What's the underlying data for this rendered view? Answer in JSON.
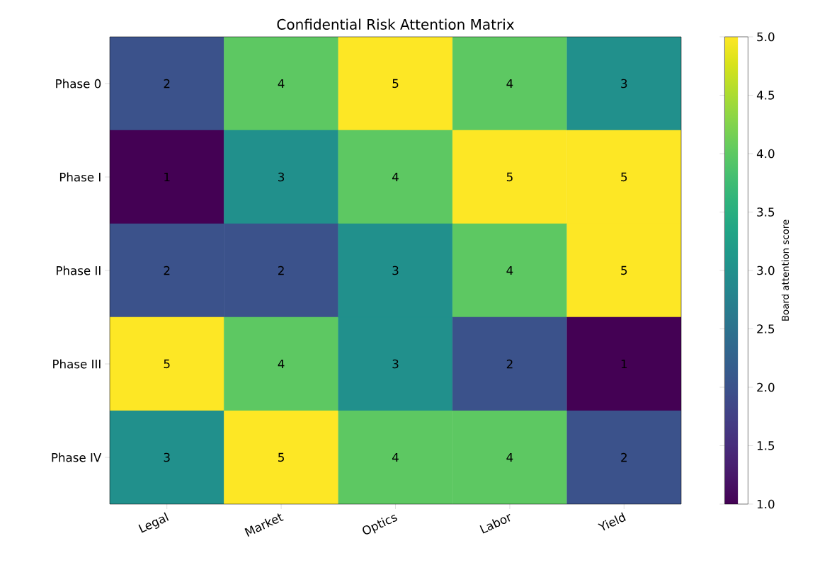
{
  "chart_data": {
    "type": "heatmap",
    "title": "Confidential Risk Attention Matrix",
    "clabel": "Board attention score",
    "categories": [
      "Legal",
      "Market",
      "Optics",
      "Labor",
      "Yield"
    ],
    "y_categories": [
      "Phase 0",
      "Phase I",
      "Phase II",
      "Phase III",
      "Phase IV"
    ],
    "cells": [
      [
        2,
        4,
        5,
        4,
        3
      ],
      [
        1,
        3,
        4,
        5,
        5
      ],
      [
        2,
        2,
        3,
        4,
        5
      ],
      [
        5,
        4,
        3,
        2,
        1
      ],
      [
        3,
        5,
        4,
        4,
        2
      ]
    ],
    "data_labels": true,
    "clim": [
      1,
      5
    ],
    "cticks": [
      {
        "value": 1,
        "label": "1.0"
      },
      {
        "value": 1.5,
        "label": "1.5"
      },
      {
        "value": 2,
        "label": "2.0"
      },
      {
        "value": 2.5,
        "label": "2.5"
      },
      {
        "value": 3,
        "label": "3.0"
      },
      {
        "value": 3.5,
        "label": "3.5"
      },
      {
        "value": 4,
        "label": "4.0"
      },
      {
        "value": 4.5,
        "label": "4.5"
      },
      {
        "value": 5,
        "label": "5.0"
      }
    ]
  }
}
